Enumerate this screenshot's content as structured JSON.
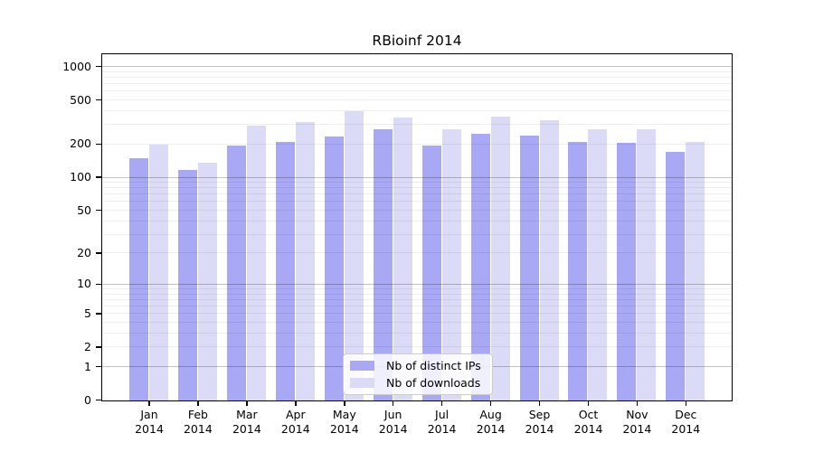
{
  "chart_data": {
    "type": "bar",
    "title": "RBioinf 2014",
    "months": [
      "Jan",
      "Feb",
      "Mar",
      "Apr",
      "May",
      "Jun",
      "Jul",
      "Aug",
      "Sep",
      "Oct",
      "Nov",
      "Dec"
    ],
    "year_label": "2014",
    "series": [
      {
        "name": "Nb of distinct IPs",
        "color": "#a8a8f5",
        "values": [
          150,
          118,
          195,
          210,
          235,
          275,
          195,
          250,
          240,
          210,
          205,
          172
        ]
      },
      {
        "name": "Nb of downloads",
        "color": "#dbdbf8",
        "values": [
          198,
          137,
          295,
          320,
          400,
          350,
          272,
          360,
          330,
          272,
          272,
          212
        ]
      }
    ],
    "y_ticks": [
      0,
      1,
      2,
      5,
      10,
      20,
      50,
      100,
      200,
      500,
      1000
    ],
    "y_scale": "log10(value+1)",
    "ylim": [
      0,
      1000
    ],
    "grid": "on",
    "legend_position": "lower center"
  },
  "colors": {
    "background": "#ffffff",
    "axis": "#000000",
    "major_gridline": "rgba(0,0,0,0.24)",
    "minor_gridline": "rgba(0,0,0,0.065)",
    "legend_border": "#cccccc"
  }
}
